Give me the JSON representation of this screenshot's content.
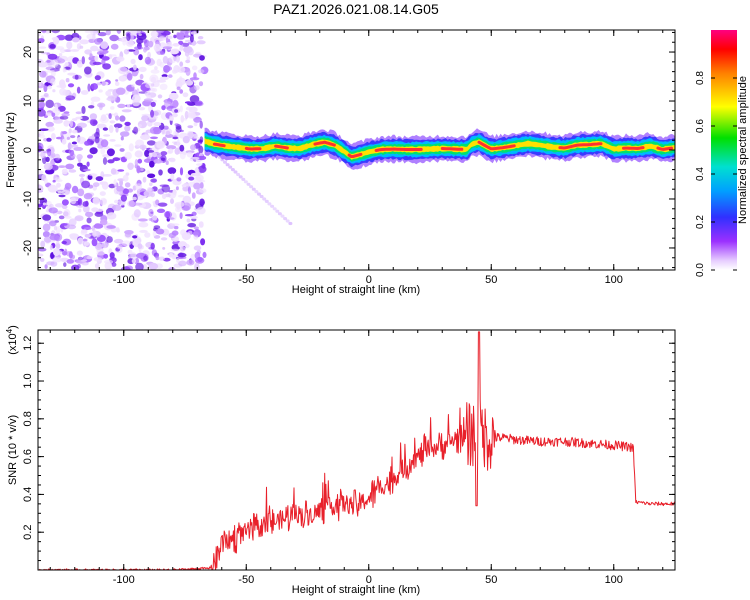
{
  "title": "PAZ1.2026.021.08.14.G05",
  "colors": {
    "snr_line": "#e8202a",
    "noise": "#8a3cff",
    "axis": "#000000"
  },
  "chart_data": [
    {
      "type": "heatmap",
      "name": "spectrogram",
      "xlabel": "Height of straight line (km)",
      "ylabel": "Frequency (Hz)",
      "xlim": [
        -135,
        125
      ],
      "ylim": [
        -24.5,
        24.5
      ],
      "xticks": [
        -100,
        -50,
        0,
        50,
        100
      ],
      "yticks": [
        -20,
        -10,
        0,
        10,
        20
      ],
      "noise_region_x": [
        -135,
        -67
      ],
      "colorbar": {
        "label": "Normalized spectral amplitude",
        "range": [
          0,
          1
        ],
        "ticks": [
          "0.0",
          "0.2",
          "0.4",
          "0.6",
          "0.8"
        ]
      },
      "ridge_freq_hz": {
        "x": [
          -67,
          -63,
          -58,
          -53,
          -48,
          -43,
          -38,
          -33,
          -28,
          -23,
          -18,
          -14,
          -10,
          -7,
          -4,
          0,
          5,
          10,
          15,
          20,
          25,
          30,
          35,
          40,
          42,
          45,
          50,
          55,
          60,
          65,
          70,
          75,
          80,
          85,
          90,
          95,
          100,
          105,
          110,
          115,
          120,
          125
        ],
        "y": [
          1.8,
          1.2,
          0.8,
          0.5,
          0.2,
          0.3,
          0.8,
          0.4,
          0.3,
          1.1,
          1.6,
          1.0,
          -0.3,
          -1.4,
          -1.0,
          -0.4,
          0.1,
          0.2,
          0.1,
          0.1,
          0.2,
          0.3,
          0.2,
          0.1,
          1.2,
          1.6,
          0.2,
          0.5,
          0.9,
          1.3,
          1.0,
          0.6,
          0.4,
          1.0,
          1.1,
          1.3,
          0.2,
          0.4,
          0.3,
          0.8,
          0.1,
          0.5
        ]
      },
      "faint_trail": {
        "x": [
          -64,
          -32
        ],
        "y": [
          0.0,
          -15.0
        ]
      }
    },
    {
      "type": "line",
      "name": "snr",
      "ylabel": "SNR (10 * v/v)",
      "scale_label": "(x10",
      "scale_exp": "4",
      "xlabel": "Height of straight line (km)",
      "xlim": [
        -135,
        125
      ],
      "ylim": [
        0,
        1.27
      ],
      "xticks": [
        -100,
        -50,
        0,
        50,
        100
      ],
      "yticks": [
        "0.2",
        "0.4",
        "0.6",
        "0.8",
        "1.0",
        "1.2"
      ],
      "series": [
        {
          "name": "SNR",
          "x": [
            -135,
            -120,
            -100,
            -80,
            -65,
            -62,
            -60,
            -55,
            -50,
            -45,
            -40,
            -35,
            -30,
            -25,
            -20,
            -15,
            -10,
            -5,
            0,
            5,
            10,
            15,
            20,
            25,
            30,
            35,
            40,
            42,
            44,
            45,
            46,
            48,
            50,
            55,
            60,
            70,
            80,
            90,
            100,
            107,
            108,
            109,
            115,
            125
          ],
          "y": [
            0.0,
            0.0,
            0.0,
            0.0,
            0.01,
            0.06,
            0.14,
            0.17,
            0.2,
            0.22,
            0.25,
            0.27,
            0.3,
            0.29,
            0.31,
            0.34,
            0.35,
            0.34,
            0.38,
            0.44,
            0.48,
            0.55,
            0.6,
            0.64,
            0.66,
            0.69,
            0.71,
            0.72,
            0.74,
            0.72,
            0.73,
            0.7,
            0.7,
            0.7,
            0.69,
            0.68,
            0.68,
            0.67,
            0.66,
            0.65,
            0.64,
            0.36,
            0.35,
            0.35
          ]
        }
      ]
    }
  ]
}
